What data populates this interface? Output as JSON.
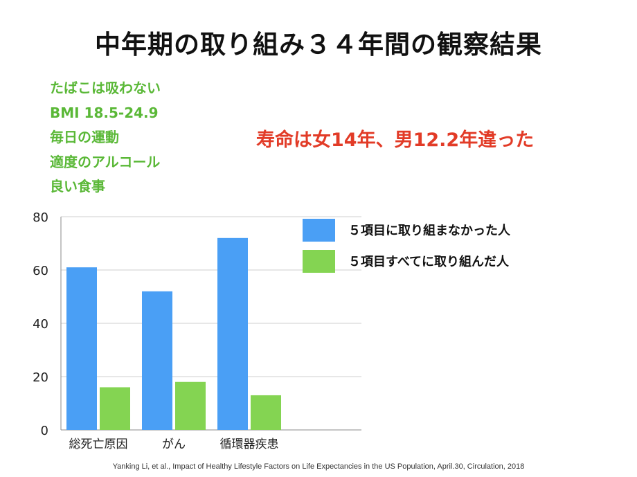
{
  "title": "中年期の取り組み３４年間の観察結果",
  "factors": [
    "たばこは吸わない",
    "BMI 18.5-24.9",
    "毎日の運動",
    "適度のアルコール",
    "良い食事"
  ],
  "headline": "寿命は女14年、男12.2年違った",
  "citation": "Yanking Li, et al., Impact of Healthy Lifestyle Factors on Life Expectancies in the US Population, April.30, Circulation, 2018",
  "colors": {
    "series1": "#4a9ff5",
    "series2": "#84d452",
    "title": "#111111",
    "factors": "#5ab837",
    "headline": "#e23b27"
  },
  "chart_data": {
    "type": "bar",
    "categories": [
      "総死亡原因",
      "がん",
      "循環器疾患"
    ],
    "series": [
      {
        "name": "５項目に取り組まなかった人",
        "values": [
          61,
          52,
          72
        ]
      },
      {
        "name": "５項目すべてに取り組んだ人",
        "values": [
          16,
          18,
          13
        ]
      }
    ],
    "ylim": [
      0,
      80
    ],
    "yticks": [
      0,
      20,
      40,
      60,
      80
    ],
    "grid": true,
    "legend": "top-right"
  }
}
